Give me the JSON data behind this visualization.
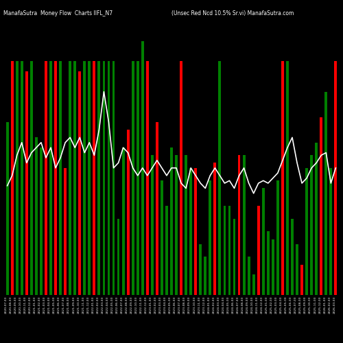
{
  "title_left": "ManafaSutra  Money Flow  Charts IIFL_N7",
  "title_right": "(Unsec Red Ncd 10.5% Sr.vi) ManafaSutra.com",
  "background_color": "#000000",
  "bar_colors": [
    "green",
    "red",
    "green",
    "green",
    "red",
    "green",
    "green",
    "green",
    "red",
    "green",
    "red",
    "green",
    "red",
    "green",
    "green",
    "red",
    "green",
    "green",
    "red",
    "green",
    "green",
    "green",
    "green",
    "green",
    "green",
    "red",
    "green",
    "green",
    "green",
    "red",
    "green",
    "red",
    "green",
    "green",
    "green",
    "green",
    "red",
    "green",
    "green",
    "red",
    "green",
    "green",
    "green",
    "red",
    "green",
    "green",
    "green",
    "green",
    "red",
    "green",
    "green",
    "green",
    "red",
    "green",
    "green",
    "green",
    "green",
    "red",
    "green",
    "green",
    "green",
    "red",
    "green",
    "green",
    "green",
    "red",
    "green",
    "green",
    "red"
  ],
  "bar_heights": [
    0.68,
    0.92,
    0.92,
    0.92,
    0.88,
    0.92,
    0.62,
    0.58,
    0.92,
    0.92,
    0.92,
    0.92,
    0.5,
    0.92,
    0.92,
    0.88,
    0.92,
    0.92,
    0.92,
    0.92,
    0.92,
    0.92,
    0.92,
    0.3,
    0.58,
    0.65,
    0.92,
    0.92,
    1.0,
    0.92,
    0.55,
    0.68,
    0.45,
    0.35,
    0.58,
    0.55,
    0.92,
    0.55,
    0.5,
    0.5,
    0.2,
    0.15,
    0.45,
    0.52,
    0.92,
    0.35,
    0.35,
    0.3,
    0.55,
    0.55,
    0.15,
    0.08,
    0.35,
    0.42,
    0.25,
    0.22,
    0.45,
    0.92,
    0.92,
    0.3,
    0.2,
    0.12,
    0.5,
    0.55,
    0.6,
    0.7,
    0.8,
    0.5,
    0.92
  ],
  "line_values": [
    0.43,
    0.47,
    0.55,
    0.6,
    0.52,
    0.56,
    0.58,
    0.6,
    0.54,
    0.58,
    0.5,
    0.54,
    0.6,
    0.62,
    0.58,
    0.62,
    0.56,
    0.6,
    0.55,
    0.65,
    0.8,
    0.68,
    0.5,
    0.52,
    0.58,
    0.56,
    0.5,
    0.47,
    0.5,
    0.47,
    0.5,
    0.53,
    0.5,
    0.47,
    0.5,
    0.5,
    0.44,
    0.42,
    0.5,
    0.47,
    0.44,
    0.42,
    0.47,
    0.5,
    0.47,
    0.44,
    0.45,
    0.42,
    0.47,
    0.5,
    0.44,
    0.4,
    0.44,
    0.45,
    0.44,
    0.46,
    0.48,
    0.53,
    0.58,
    0.62,
    0.52,
    0.44,
    0.46,
    0.5,
    0.52,
    0.55,
    0.56,
    0.44,
    0.5
  ],
  "ylim": [
    0,
    1.08
  ],
  "line_color": "#ffffff",
  "line_width": 1.2,
  "bar_width": 0.55,
  "figsize": [
    5.0,
    5.0
  ],
  "dpi": 100
}
